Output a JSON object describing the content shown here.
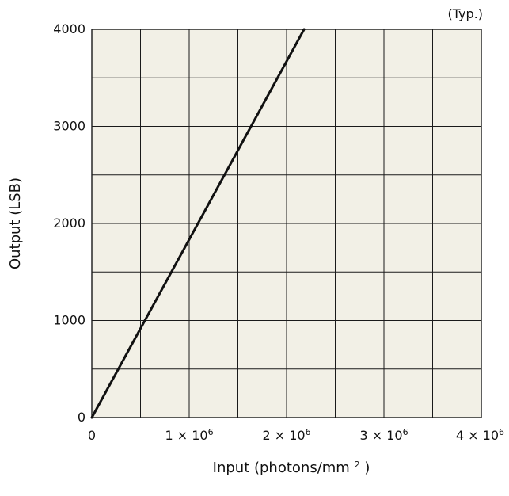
{
  "chart_data": {
    "type": "line",
    "title": "",
    "annotation": "(Typ.)",
    "xlabel": {
      "prefix": "Input (photons/mm",
      "superscript": "2",
      "suffix": ")"
    },
    "ylabel": "Output (LSB)",
    "xlim": [
      0,
      4000000
    ],
    "ylim": [
      0,
      4000
    ],
    "grid": true,
    "x_minor_step": 500000,
    "y_minor_step": 500,
    "x_ticks": [
      {
        "value": 0,
        "label": "0",
        "superscript": ""
      },
      {
        "value": 1000000,
        "label": "1 × 10",
        "superscript": "6"
      },
      {
        "value": 2000000,
        "label": "2 × 10",
        "superscript": "6"
      },
      {
        "value": 3000000,
        "label": "3 × 10",
        "superscript": "6"
      },
      {
        "value": 4000000,
        "label": "4 × 10",
        "superscript": "6"
      }
    ],
    "y_ticks": [
      {
        "value": 0,
        "label": "0"
      },
      {
        "value": 1000,
        "label": "1000"
      },
      {
        "value": 2000,
        "label": "2000"
      },
      {
        "value": 3000,
        "label": "3000"
      },
      {
        "value": 4000,
        "label": "4000"
      }
    ],
    "series": [
      {
        "points": [
          {
            "x": 0,
            "y": 0
          },
          {
            "x": 2180000,
            "y": 4000
          }
        ]
      }
    ],
    "colors": {
      "plot_background": "#f2f0e6",
      "grid": "#1a1a1a",
      "line": "#111111"
    }
  }
}
